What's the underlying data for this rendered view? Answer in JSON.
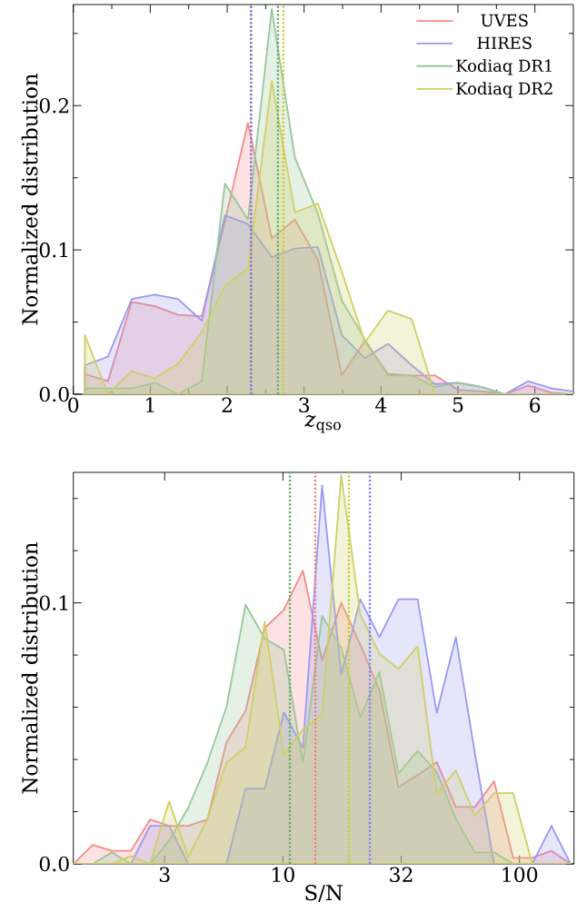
{
  "chart_data": [
    {
      "type": "area",
      "xlabel": "*z*$_{qso}$",
      "ylabel": "Normalized distribution",
      "legend": "top right",
      "x": [
        0.15,
        0.45,
        0.76,
        1.06,
        1.36,
        1.67,
        1.97,
        2.27,
        2.58,
        2.88,
        3.18,
        3.49,
        3.79,
        4.09,
        4.4,
        4.7,
        5.0,
        5.31,
        5.61,
        5.91,
        6.22,
        6.5
      ],
      "xlim": [
        0,
        6.5
      ],
      "ylim": [
        0,
        0.27
      ],
      "xticks": [
        0,
        {
          "value": 0.5,
          "label": null
        },
        1,
        {
          "value": 1.5,
          "label": null
        },
        2,
        {
          "value": 2.5,
          "label": null
        },
        3,
        {
          "value": 3.5,
          "label": null
        },
        4,
        {
          "value": 4.5,
          "label": null
        },
        5,
        {
          "value": 5.5,
          "label": null
        },
        6
      ],
      "yticks": [
        {
          "value": 0,
          "label": "0.0"
        },
        {
          "value": 0.05,
          "label": null
        },
        {
          "value": 0.1,
          "label": "0.1"
        },
        {
          "value": 0.15,
          "label": null
        },
        {
          "value": 0.2,
          "label": "0.2"
        },
        {
          "value": 0.25,
          "label": null
        }
      ],
      "series": [
        {
          "name": "UVES",
          "color": "#f28b8b",
          "values": [
            0.014,
            0.009,
            0.064,
            0.061,
            0.055,
            0.054,
            0.12,
            0.188,
            0.108,
            0.121,
            0.093,
            0.013,
            0.037,
            0.014,
            0.013,
            0.013,
            0.003,
            0.002,
            0,
            0.006,
            0.001,
            0
          ]
        },
        {
          "name": "HIRES",
          "color": "#9999f2",
          "values": [
            0.02,
            0.026,
            0.066,
            0.069,
            0.066,
            0.051,
            0.124,
            0.118,
            0.095,
            0.101,
            0.102,
            0.041,
            0.025,
            0.035,
            0.02,
            0.007,
            0.008,
            0.005,
            0,
            0.009,
            0.004,
            0.002
          ]
        },
        {
          "name": "Kodiaq DR1",
          "color": "#99c799",
          "values": [
            0.004,
            0.004,
            0.004,
            0.008,
            0,
            0.009,
            0.146,
            0.121,
            0.267,
            0.164,
            0.125,
            0.065,
            0.038,
            0.013,
            0.013,
            0.005,
            0.008,
            0.005,
            0,
            0,
            0,
            0
          ]
        },
        {
          "name": "Kodiaq DR2",
          "color": "#cfcf66",
          "values": [
            0.041,
            0,
            0.016,
            0.011,
            0.021,
            0.043,
            0.075,
            0.087,
            0.217,
            0.126,
            0.132,
            0.085,
            0.036,
            0.058,
            0.052,
            0,
            0,
            0,
            0,
            0,
            0,
            0
          ]
        }
      ],
      "ref_lines": [
        {
          "axis": "x",
          "value": 2.31,
          "color": "#e07070",
          "line_style": "dotted"
        },
        {
          "axis": "x",
          "value": 2.31,
          "color": "#8080e0",
          "line_style": "dotted"
        },
        {
          "axis": "x",
          "value": 2.66,
          "color": "#66aa66",
          "line_style": "dotted"
        },
        {
          "axis": "x",
          "value": 2.73,
          "color": "#cccc33",
          "line_style": "dotted"
        }
      ]
    },
    {
      "type": "area",
      "xlabel": "S/N",
      "ylabel": "Normalized distribution",
      "log": "x",
      "x": [
        1.303,
        1.57,
        1.891,
        2.278,
        2.743,
        3.304,
        3.98,
        4.793,
        5.774,
        6.954,
        8.375,
        10.09,
        12.15,
        14.64,
        17.63,
        21.23,
        25.57,
        30.8,
        37.1,
        44.69,
        53.83,
        64.83,
        78.09,
        94.06,
        113.3,
        136.5,
        164.4
      ],
      "xlim": [
        1.3,
        170
      ],
      "ylim": [
        0,
        0.15
      ],
      "xticks": [
        {
          "value": 3.162,
          "label": "3"
        },
        10,
        {
          "value": 31.62,
          "label": "32"
        },
        100
      ],
      "yticks": [
        {
          "value": 0,
          "label": "0.0"
        },
        {
          "value": 0.02,
          "label": null
        },
        {
          "value": 0.04,
          "label": null
        },
        {
          "value": 0.06,
          "label": null
        },
        {
          "value": 0.08,
          "label": null
        },
        {
          "value": 0.1,
          "label": "0.1"
        },
        {
          "value": 0.12,
          "label": null
        },
        {
          "value": 0.14,
          "label": null
        }
      ],
      "series": [
        {
          "color": "#f28b8b",
          "values": [
            0,
            0.0073,
            0.005,
            0.005,
            0.017,
            0.0146,
            0.0146,
            0.017,
            0.0466,
            0.0587,
            0.0904,
            0.0973,
            0.1124,
            0.078,
            0.1,
            0.084,
            0.0665,
            0.0294,
            0.034,
            0.039,
            0.0218,
            0.0218,
            0.0317,
            0.0023,
            0.0023,
            0.005,
            0
          ]
        },
        {
          "color": "#9999f2",
          "values": [
            0,
            0,
            0,
            0,
            0.0146,
            0.0146,
            0,
            0,
            0,
            0.0288,
            0.0288,
            0.058,
            0.0445,
            0.145,
            0.0724,
            0.1014,
            0.0869,
            0.1014,
            0.1014,
            0.0578,
            0.0869,
            0.0422,
            0,
            0,
            0,
            0.0146,
            0
          ]
        },
        {
          "color": "#99c799",
          "values": [
            0,
            0,
            0.0044,
            0,
            0,
            0.009,
            0.0215,
            0.0387,
            0.0602,
            0.0993,
            0.0863,
            0.082,
            0.0387,
            0.095,
            0.0828,
            0.0561,
            0.0735,
            0.0346,
            0.0433,
            0.0352,
            0.0172,
            0.0044,
            0.0044,
            0,
            0,
            0,
            0
          ]
        },
        {
          "color": "#cfcf66",
          "values": [
            0,
            0,
            0,
            0.003,
            0,
            0.0239,
            0.0027,
            0.0172,
            0.0387,
            0.0448,
            0.0929,
            0.0418,
            0.0515,
            0.0573,
            0.149,
            0.0956,
            0.0805,
            0.0747,
            0.0834,
            0.0271,
            0.0358,
            0.0184,
            0.0271,
            0.0271,
            0,
            0,
            0
          ]
        }
      ],
      "ref_lines": [
        {
          "axis": "x",
          "value": 10.7,
          "color": "#66aa66",
          "line_style": "dotted"
        },
        {
          "axis": "x",
          "value": 13.7,
          "color": "#f08080",
          "line_style": "dotted"
        },
        {
          "axis": "x",
          "value": 19.0,
          "color": "#cccc33",
          "line_style": "dotted"
        },
        {
          "axis": "x",
          "value": 23.3,
          "color": "#8080f0",
          "line_style": "dotted"
        }
      ]
    }
  ]
}
